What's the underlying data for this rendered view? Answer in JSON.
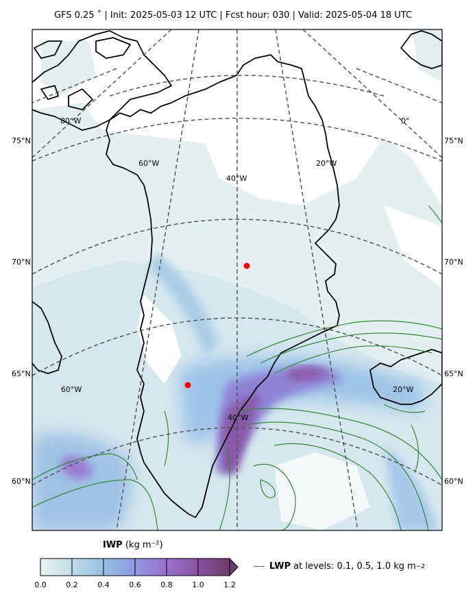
{
  "header": {
    "title": "GFS 0.25$^\\circ$  |  Init: 2025-05-03 12 UTC  |  Fcst hour: 030  |  Valid: 2025-05-04 18 UTC",
    "title_display": "GFS 0.25 ˚  |  Init: 2025-05-03 12 UTC  |  Fcst hour: 030  |  Valid: 2025-05-04 18 UTC"
  },
  "map": {
    "lat_labels_left": [
      "75°N",
      "70°N",
      "65°N",
      "60°N"
    ],
    "lat_labels_right": [
      "75°N",
      "70°N",
      "65°N",
      "60°N"
    ],
    "lon_labels": [
      "80°W",
      "60°W",
      "40°W",
      "20°W",
      "0°",
      "60°W",
      "20°W",
      "40°W"
    ],
    "markers": [
      {
        "name": "marker-1",
        "color": "#ff0000"
      },
      {
        "name": "marker-2",
        "color": "#ff0000"
      }
    ]
  },
  "colorbar": {
    "var": "IWP",
    "units": "(kg m$^{-2}$)",
    "units_display": "(kg m⁻²)",
    "ticks": [
      "0.0",
      "0.2",
      "0.4",
      "0.6",
      "0.8",
      "1.0",
      "1.2"
    ],
    "colors": [
      "#e7f1f3",
      "#b2d5e6",
      "#8fb9e6",
      "#9490de",
      "#9a68c0",
      "#834a8e"
    ]
  },
  "legend": {
    "var": "LWP",
    "text": "at levels: 0.1, 0.5, 1.0  kg m",
    "sup": "−2",
    "color": "#2e8b2e"
  }
}
